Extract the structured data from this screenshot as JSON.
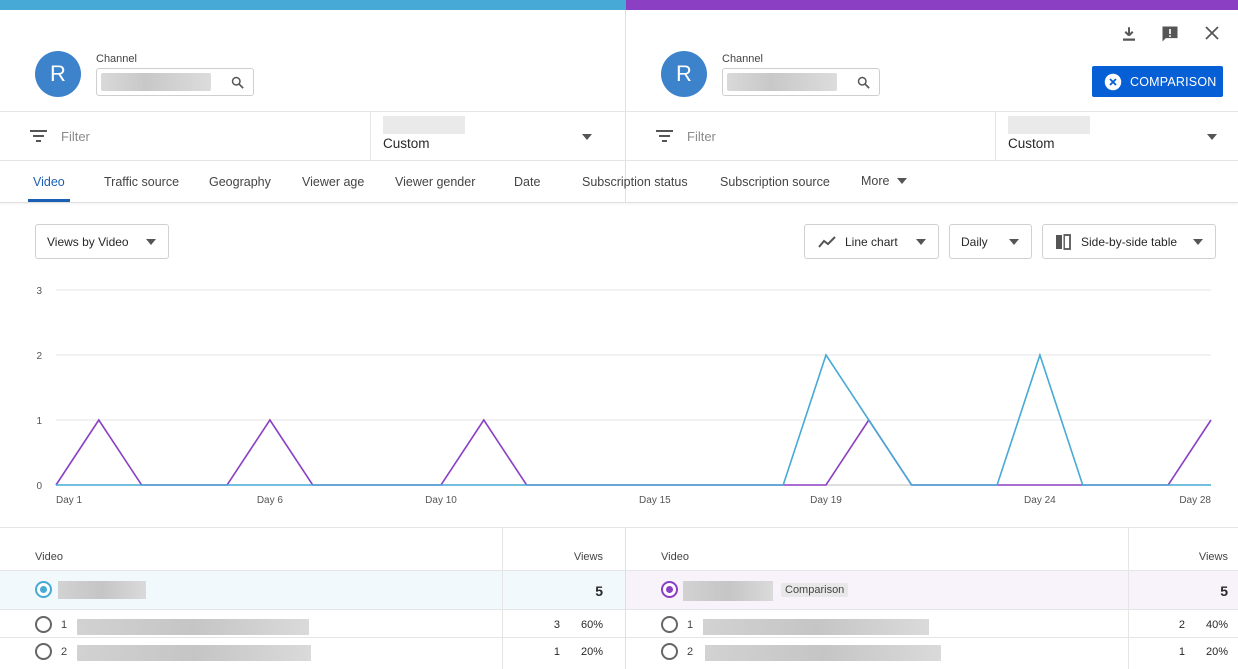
{
  "left": {
    "avatar_letter": "R",
    "channel_label": "Channel",
    "filter_placeholder": "Filter",
    "period_value": "Custom"
  },
  "right": {
    "avatar_letter": "R",
    "channel_label": "Channel",
    "filter_placeholder": "Filter",
    "period_value": "Custom",
    "comparison_button": "COMPARISON"
  },
  "tabs": [
    "Video",
    "Traffic source",
    "Geography",
    "Viewer age",
    "Viewer gender",
    "Date",
    "Subscription status",
    "Subscription source",
    "More"
  ],
  "controls": {
    "metric_select": "Views by Video",
    "chart_type": "Line chart",
    "interval": "Daily",
    "table_mode": "Side-by-side table"
  },
  "colors": {
    "left_series": "#46a9d6",
    "right_series": "#8b3fc2",
    "accent": "#065fd4"
  },
  "chart_data": {
    "type": "line",
    "x_tick_labels": [
      "Day 1",
      "Day 6",
      "Day 10",
      "Day 15",
      "Day 19",
      "Day 24",
      "Day 28"
    ],
    "x_tick_days": [
      1,
      6,
      10,
      15,
      19,
      24,
      28
    ],
    "y_tick_labels": [
      "0",
      "1",
      "2",
      "3"
    ],
    "ylim": [
      0,
      3
    ],
    "xlim": [
      1,
      28
    ],
    "grid": true,
    "series": [
      {
        "color": "#46a9d6",
        "values": [
          0,
          0,
          0,
          0,
          0,
          0,
          0,
          0,
          0,
          0,
          0,
          0,
          0,
          0,
          0,
          0,
          0,
          0,
          2,
          1,
          0,
          0,
          0,
          2,
          0,
          0,
          0,
          0
        ]
      },
      {
        "color": "#8b3fc2",
        "values": [
          0,
          1,
          0,
          0,
          0,
          1,
          0,
          0,
          0,
          0,
          1,
          0,
          0,
          0,
          0,
          0,
          0,
          0,
          0,
          1,
          0,
          0,
          0,
          0,
          0,
          0,
          0,
          1
        ]
      }
    ]
  },
  "table_left": {
    "col_video": "Video",
    "col_views": "Views",
    "total": "5",
    "rows": [
      {
        "rank": "1",
        "views": "3",
        "pct": "60%"
      },
      {
        "rank": "2",
        "views": "1",
        "pct": "20%"
      }
    ]
  },
  "table_right": {
    "col_video": "Video",
    "col_views": "Views",
    "total": "5",
    "badge": "Comparison",
    "rows": [
      {
        "rank": "1",
        "views": "2",
        "pct": "40%"
      },
      {
        "rank": "2",
        "views": "1",
        "pct": "20%"
      }
    ]
  }
}
